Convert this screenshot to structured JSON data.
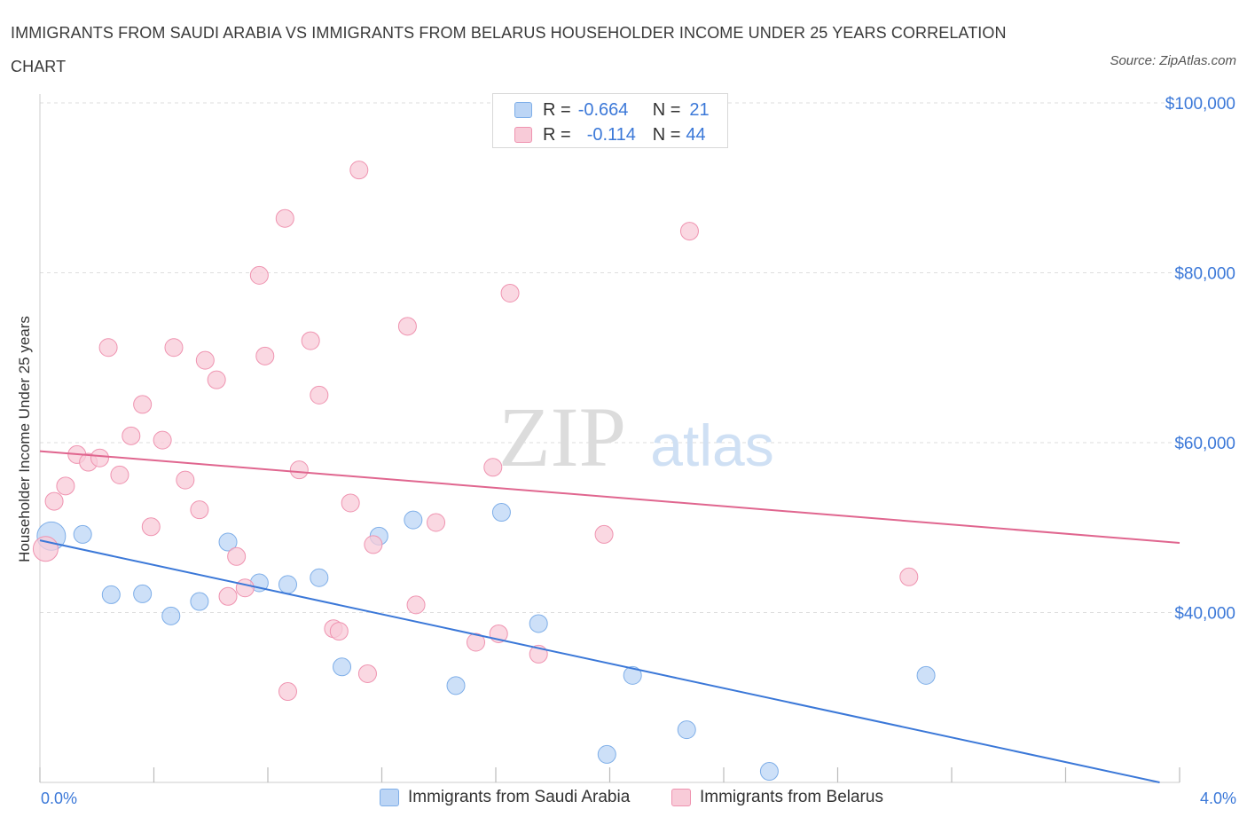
{
  "title": "IMMIGRANTS FROM SAUDI ARABIA VS IMMIGRANTS FROM BELARUS HOUSEHOLDER INCOME UNDER 25 YEARS CORRELATION CHART",
  "source": "Source: ZipAtlas.com",
  "watermark": {
    "zip": "ZIP",
    "atlas": "atlas"
  },
  "legend": {
    "r_label": "R =",
    "n_label": "N =",
    "rows": [
      {
        "r": "-0.664",
        "n": "21",
        "color": "#7eaee8",
        "fill": "#bcd5f5"
      },
      {
        "r": "-0.114",
        "n": "44",
        "color": "#ef93b0",
        "fill": "#f8cbd8"
      }
    ]
  },
  "chart_data": {
    "type": "scatter",
    "title": "IMMIGRANTS FROM SAUDI ARABIA VS IMMIGRANTS FROM BELARUS HOUSEHOLDER INCOME UNDER 25 YEARS CORRELATION CHART",
    "xlabel": "",
    "ylabel": "Householder Income Under 25 years",
    "x_tick_labels": [
      "0.0%",
      "4.0%"
    ],
    "xlim": [
      0,
      4.0
    ],
    "ylim": [
      20000,
      100000
    ],
    "y_ticks": [
      40000,
      60000,
      80000,
      100000
    ],
    "y_tick_labels": [
      "$40,000",
      "$60,000",
      "$80,000",
      "$100,000"
    ],
    "grid": true,
    "legend_position": "top-center",
    "series": [
      {
        "name": "Immigrants from Saudi Arabia",
        "color": "#3b78d8",
        "marker_fill": "#bcd5f5",
        "marker_stroke": "#7eaee8",
        "trend": {
          "x": [
            0.0,
            3.93
          ],
          "y": [
            48500,
            20000
          ]
        },
        "points": [
          [
            0.04,
            49000,
            16
          ],
          [
            0.15,
            49200,
            10
          ],
          [
            0.25,
            42100,
            10
          ],
          [
            0.36,
            42200,
            10
          ],
          [
            0.46,
            39600,
            10
          ],
          [
            0.56,
            41300,
            10
          ],
          [
            0.66,
            48300,
            10
          ],
          [
            0.77,
            43500,
            10
          ],
          [
            0.87,
            43300,
            10
          ],
          [
            0.98,
            44100,
            10
          ],
          [
            1.06,
            33600,
            10
          ],
          [
            1.19,
            49000,
            10
          ],
          [
            1.31,
            50900,
            10
          ],
          [
            1.46,
            31400,
            10
          ],
          [
            1.62,
            51800,
            10
          ],
          [
            1.75,
            38700,
            10
          ],
          [
            1.99,
            23300,
            10
          ],
          [
            2.08,
            32600,
            10
          ],
          [
            2.27,
            26200,
            10
          ],
          [
            2.56,
            21300,
            10
          ],
          [
            3.11,
            32600,
            10
          ]
        ]
      },
      {
        "name": "Immigrants from Belarus",
        "color": "#e0668f",
        "marker_fill": "#f8cbd8",
        "marker_stroke": "#ef93b0",
        "trend": {
          "x": [
            0.0,
            4.0
          ],
          "y": [
            59000,
            48200
          ]
        },
        "points": [
          [
            0.02,
            47500,
            14
          ],
          [
            0.05,
            53100,
            10
          ],
          [
            0.09,
            54900,
            10
          ],
          [
            0.13,
            58600,
            10
          ],
          [
            0.17,
            57700,
            10
          ],
          [
            0.21,
            58200,
            10
          ],
          [
            0.24,
            71200,
            10
          ],
          [
            0.28,
            56200,
            10
          ],
          [
            0.32,
            60800,
            10
          ],
          [
            0.36,
            64500,
            10
          ],
          [
            0.39,
            50100,
            10
          ],
          [
            0.43,
            60300,
            10
          ],
          [
            0.47,
            71200,
            10
          ],
          [
            0.51,
            55600,
            10
          ],
          [
            0.56,
            52100,
            10
          ],
          [
            0.58,
            69700,
            10
          ],
          [
            0.62,
            67400,
            10
          ],
          [
            0.66,
            41900,
            10
          ],
          [
            0.69,
            46600,
            10
          ],
          [
            0.72,
            42900,
            10
          ],
          [
            0.77,
            79700,
            10
          ],
          [
            0.79,
            70200,
            10
          ],
          [
            0.86,
            86400,
            10
          ],
          [
            0.87,
            30700,
            10
          ],
          [
            0.91,
            56800,
            10
          ],
          [
            0.95,
            72000,
            10
          ],
          [
            0.98,
            65600,
            10
          ],
          [
            1.03,
            38100,
            10
          ],
          [
            1.05,
            37800,
            10
          ],
          [
            1.09,
            52900,
            10
          ],
          [
            1.12,
            92100,
            10
          ],
          [
            1.15,
            32800,
            10
          ],
          [
            1.17,
            48000,
            10
          ],
          [
            1.29,
            73700,
            10
          ],
          [
            1.32,
            40900,
            10
          ],
          [
            1.39,
            50600,
            10
          ],
          [
            1.53,
            36500,
            10
          ],
          [
            1.59,
            57100,
            10
          ],
          [
            1.61,
            37500,
            10
          ],
          [
            1.65,
            77600,
            10
          ],
          [
            1.75,
            35100,
            10
          ],
          [
            1.98,
            49200,
            10
          ],
          [
            2.28,
            84900,
            10
          ],
          [
            3.05,
            44200,
            10
          ]
        ]
      }
    ]
  }
}
